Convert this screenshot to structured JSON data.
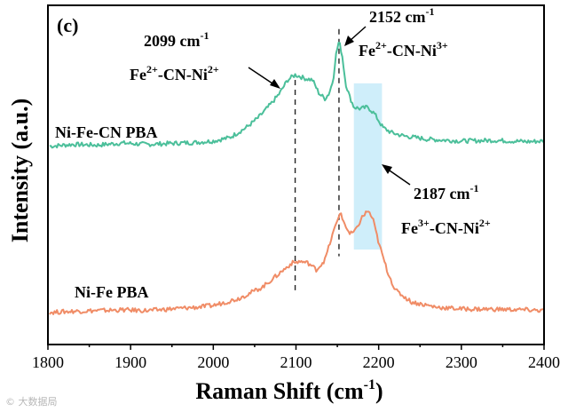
{
  "chart_data": {
    "type": "line",
    "panel_label": "(c)",
    "xlabel_main": "Raman Shift (cm",
    "xlabel_sup": "-1",
    "xlabel_end": ")",
    "ylabel": "Intensity (a.u.)",
    "xlim": [
      1800,
      2400
    ],
    "ylim": [
      0,
      100
    ],
    "xticks": [
      1800,
      1900,
      2000,
      2100,
      2200,
      2300,
      2400
    ],
    "series": [
      {
        "name": "Ni-Fe-CN PBA",
        "color": "#4bbf9a",
        "x": [
          1805,
          1830,
          1860,
          1890,
          1920,
          1950,
          1980,
          2000,
          2020,
          2040,
          2055,
          2070,
          2080,
          2090,
          2099,
          2105,
          2110,
          2120,
          2128,
          2135,
          2140,
          2145,
          2148,
          2152,
          2156,
          2160,
          2165,
          2170,
          2178,
          2187,
          2195,
          2205,
          2215,
          2230,
          2260,
          2300,
          2340,
          2380,
          2400
        ],
        "y": [
          58.5,
          59,
          58.8,
          59.4,
          59,
          59.3,
          59.6,
          60,
          61,
          64,
          67,
          71,
          74,
          78,
          79.5,
          79,
          78.5,
          78,
          74,
          72.5,
          74,
          78,
          85,
          89.5,
          85,
          77,
          73,
          70,
          69.5,
          70,
          68,
          64,
          62.5,
          61.5,
          60.5,
          60,
          60.2,
          59.8,
          60
        ]
      },
      {
        "name": "Ni-Fe PBA",
        "color": "#f08c66",
        "x": [
          1805,
          1830,
          1860,
          1890,
          1920,
          1950,
          1980,
          2000,
          2030,
          2060,
          2080,
          2095,
          2105,
          2115,
          2125,
          2135,
          2140,
          2145,
          2150,
          2153,
          2158,
          2165,
          2172,
          2180,
          2187,
          2193,
          2200,
          2210,
          2220,
          2240,
          2270,
          2300,
          2340,
          2380,
          2400
        ],
        "y": [
          9.5,
          9.8,
          10,
          10.2,
          10,
          10.5,
          11,
          11.5,
          13.5,
          17,
          21,
          24,
          24.5,
          24,
          22,
          25,
          29,
          33,
          36.5,
          39,
          36,
          32.5,
          33.5,
          37.5,
          39.5,
          37,
          30,
          22,
          16,
          12.5,
          11,
          10.5,
          10.4,
          10.2,
          10
        ]
      }
    ],
    "series_labels": [
      "Ni-Fe-CN PBA",
      "Ni-Fe PBA"
    ],
    "dashed_lines_x": [
      2099,
      2152
    ],
    "highlight_band": [
      2170,
      2204
    ],
    "annotations": [
      {
        "id": "a2099",
        "wavenumber": "2099 cm",
        "unit_sup": "-1",
        "assignment_parts": [
          "Fe",
          "2+",
          "-CN-Ni",
          "2+"
        ]
      },
      {
        "id": "a2152",
        "wavenumber": "2152 cm",
        "unit_sup": "-1",
        "assignment_parts": [
          "Fe",
          "2+",
          "-CN-Ni",
          "3+"
        ]
      },
      {
        "id": "a2187",
        "wavenumber": "2187 cm",
        "unit_sup": "-1",
        "assignment_parts": [
          "Fe",
          "3+",
          "-CN-Ni",
          "2+"
        ]
      }
    ]
  },
  "watermark": "© 大数据局"
}
